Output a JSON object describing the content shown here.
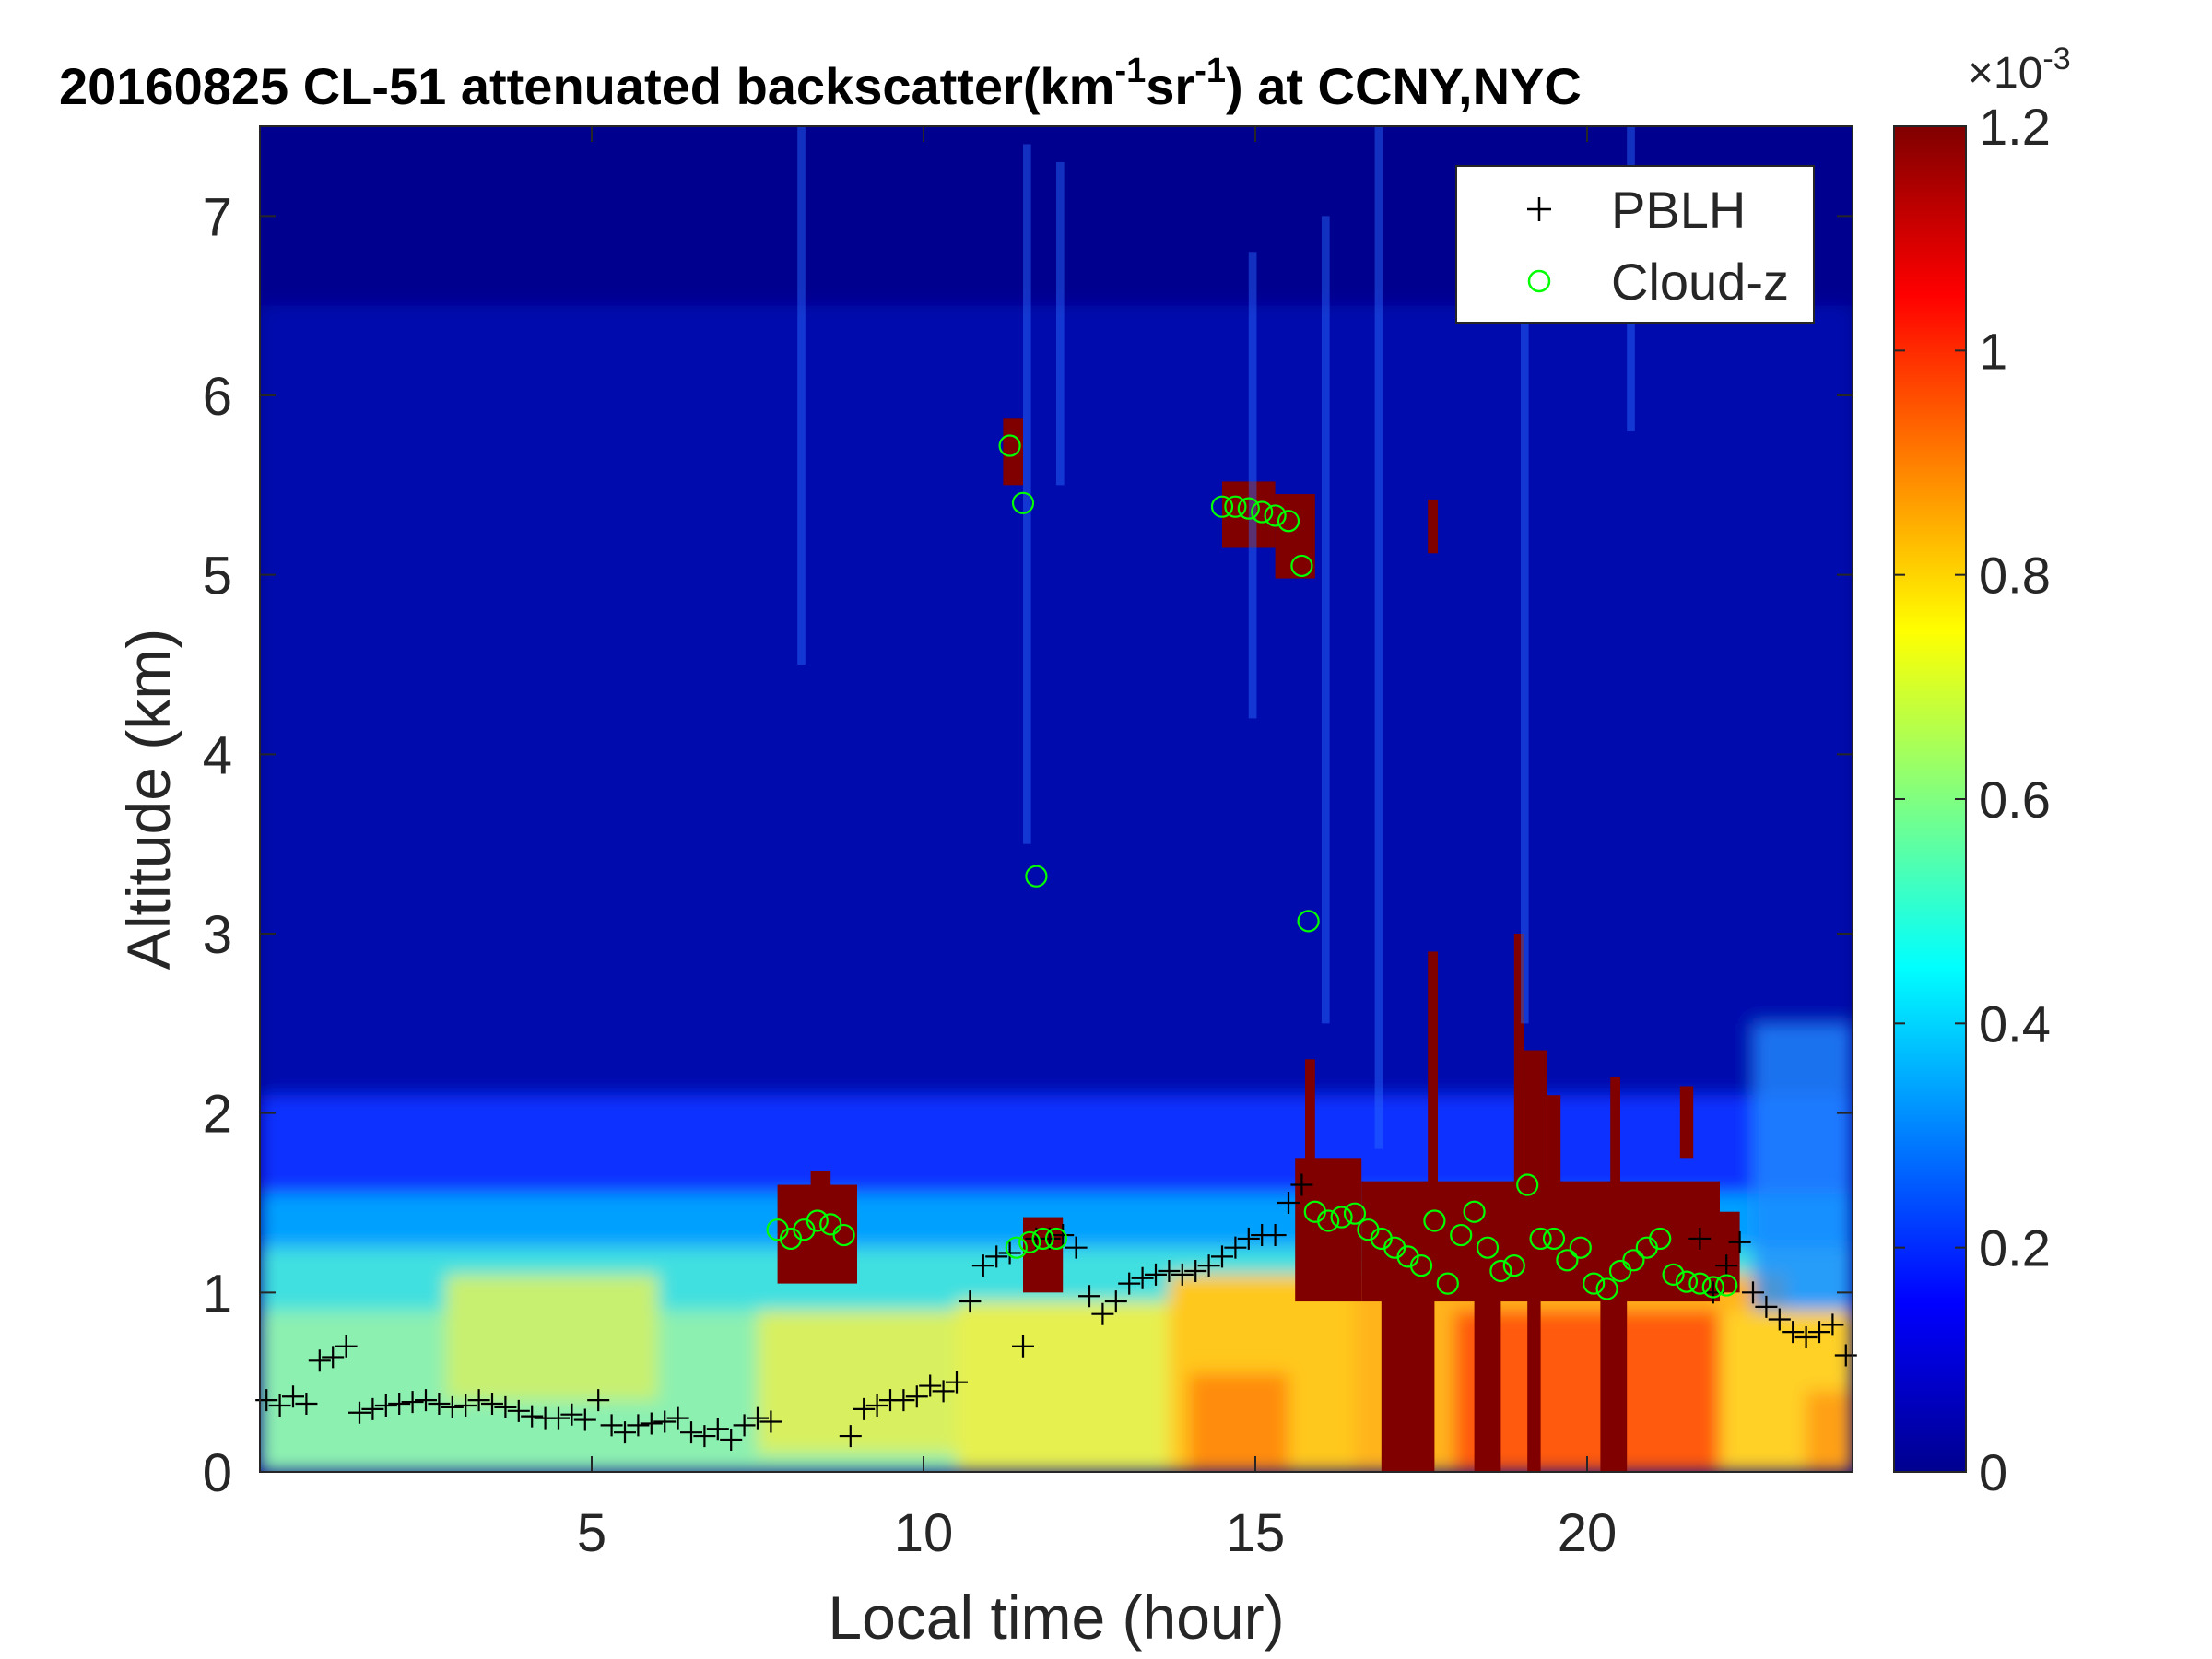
{
  "chart_data": {
    "type": "heatmap",
    "title": {
      "prefix": "20160825  CL-51 attenuated backscatter(km",
      "sup1": "-1",
      "mid": "sr",
      "sup2": "-1",
      "suffix": ") at CCNY,NYC"
    },
    "xlabel": "Local time (hour)",
    "ylabel": "Altitude (km)",
    "xlim": [
      0,
      24
    ],
    "ylim": [
      0,
      7.5
    ],
    "xticks": [
      5,
      10,
      15,
      20
    ],
    "yticks": [
      0,
      1,
      2,
      3,
      4,
      5,
      6,
      7
    ],
    "colorbar": {
      "colormap": "jet",
      "range": [
        0,
        1.2
      ],
      "ticks": [
        "0",
        "0.2",
        "0.4",
        "0.6",
        "0.8",
        "1",
        "1.2"
      ],
      "tick_values": [
        0,
        0.2,
        0.4,
        0.6,
        0.8,
        1.0,
        1.2
      ],
      "exponent_base": "×10",
      "exponent": "-3"
    },
    "legend": {
      "placement": "top-right",
      "entries": [
        {
          "label": "PBLH",
          "marker": "+",
          "color": "#000000"
        },
        {
          "label": "Cloud-z",
          "marker": "o",
          "color": "#00ff00"
        }
      ]
    },
    "series": [
      {
        "name": "PBLH",
        "marker": "+",
        "color": "#000000",
        "x": [
          0.1,
          0.3,
          0.5,
          0.7,
          0.9,
          1.1,
          1.3,
          1.5,
          1.7,
          1.9,
          2.1,
          2.3,
          2.5,
          2.7,
          2.9,
          3.1,
          3.3,
          3.5,
          3.7,
          3.9,
          4.1,
          4.3,
          4.5,
          4.7,
          4.9,
          5.1,
          5.3,
          5.5,
          5.7,
          5.9,
          6.1,
          6.3,
          6.5,
          6.7,
          6.9,
          7.1,
          7.3,
          7.5,
          7.7,
          8.9,
          9.1,
          9.3,
          9.5,
          9.7,
          9.9,
          10.1,
          10.3,
          10.5,
          10.7,
          10.9,
          11.1,
          11.3,
          11.5,
          11.7,
          11.9,
          12.1,
          12.3,
          12.5,
          12.7,
          12.9,
          13.1,
          13.3,
          13.5,
          13.7,
          13.9,
          14.1,
          14.3,
          14.5,
          14.7,
          14.9,
          15.1,
          15.3,
          15.5,
          15.7,
          21.7,
          21.9,
          22.1,
          22.3,
          22.5,
          22.7,
          22.9,
          23.1,
          23.3,
          23.5,
          23.7,
          23.9
        ],
        "y": [
          0.4,
          0.37,
          0.42,
          0.38,
          0.62,
          0.64,
          0.7,
          0.33,
          0.35,
          0.37,
          0.38,
          0.39,
          0.4,
          0.38,
          0.36,
          0.37,
          0.4,
          0.38,
          0.36,
          0.34,
          0.31,
          0.3,
          0.3,
          0.32,
          0.29,
          0.4,
          0.26,
          0.22,
          0.26,
          0.27,
          0.28,
          0.3,
          0.22,
          0.2,
          0.24,
          0.18,
          0.26,
          0.3,
          0.28,
          0.2,
          0.35,
          0.37,
          0.4,
          0.4,
          0.42,
          0.48,
          0.45,
          0.5,
          0.95,
          1.15,
          1.2,
          1.22,
          0.7,
          1.3,
          1.3,
          1.32,
          1.25,
          0.98,
          0.88,
          0.95,
          1.05,
          1.08,
          1.1,
          1.12,
          1.1,
          1.12,
          1.15,
          1.2,
          1.25,
          1.3,
          1.32,
          1.32,
          1.5,
          1.6,
          1.3,
          1.0,
          1.15,
          1.28,
          1.0,
          0.92,
          0.85,
          0.78,
          0.75,
          0.78,
          0.82,
          0.65
        ]
      },
      {
        "name": "Cloud-z",
        "marker": "o",
        "color": "#00ff00",
        "x": [
          7.8,
          8.0,
          8.2,
          8.4,
          8.6,
          8.8,
          11.4,
          11.6,
          11.8,
          12.0,
          14.5,
          14.7,
          14.9,
          15.1,
          15.3,
          15.5,
          15.7,
          15.9,
          16.1,
          16.3,
          16.5,
          16.7,
          16.9,
          17.1,
          17.3,
          17.5,
          17.7,
          17.9,
          18.1,
          18.3,
          18.5,
          18.7,
          18.9,
          19.1,
          19.3,
          19.5,
          19.7,
          19.9,
          20.1,
          20.3,
          20.5,
          20.7,
          20.9,
          21.1,
          21.3,
          21.5,
          21.7,
          21.9,
          22.1,
          11.3,
          11.5,
          11.7,
          15.8
        ],
        "y": [
          1.35,
          1.3,
          1.35,
          1.4,
          1.38,
          1.32,
          1.25,
          1.28,
          1.3,
          1.3,
          5.38,
          5.38,
          5.37,
          5.35,
          5.33,
          5.3,
          5.05,
          1.45,
          1.4,
          1.42,
          1.44,
          1.35,
          1.3,
          1.25,
          1.2,
          1.15,
          1.4,
          1.05,
          1.32,
          1.45,
          1.25,
          1.12,
          1.15,
          1.6,
          1.3,
          1.3,
          1.18,
          1.25,
          1.05,
          1.02,
          1.12,
          1.18,
          1.25,
          1.3,
          1.1,
          1.06,
          1.05,
          1.03,
          1.04,
          5.72,
          5.4,
          3.32,
          3.07
        ]
      }
    ]
  }
}
